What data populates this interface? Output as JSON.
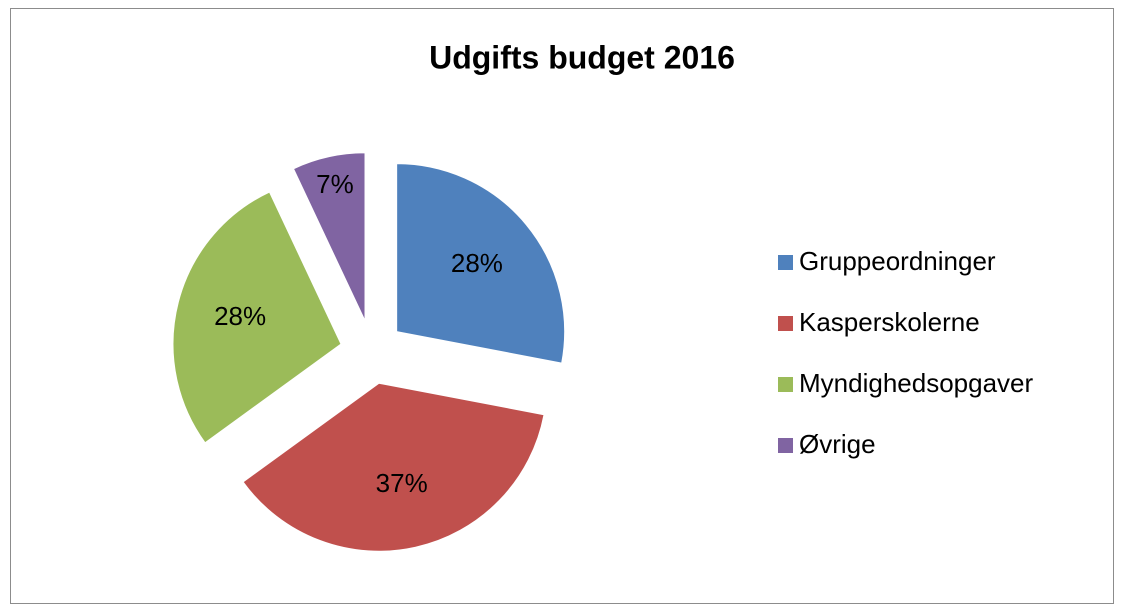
{
  "chart_data": {
    "type": "pie",
    "title": "Udgifts budget 2016",
    "categories": [
      "Gruppeordninger",
      "Kasperskolerne",
      "Myndighedsopgaver",
      "Øvrige"
    ],
    "values": [
      28,
      37,
      28,
      7
    ],
    "value_labels": [
      "28%",
      "37%",
      "28%",
      "7%"
    ],
    "colors": [
      "#4f81bd",
      "#c0504d",
      "#9bbb59",
      "#8064a2"
    ],
    "legend": "right"
  }
}
